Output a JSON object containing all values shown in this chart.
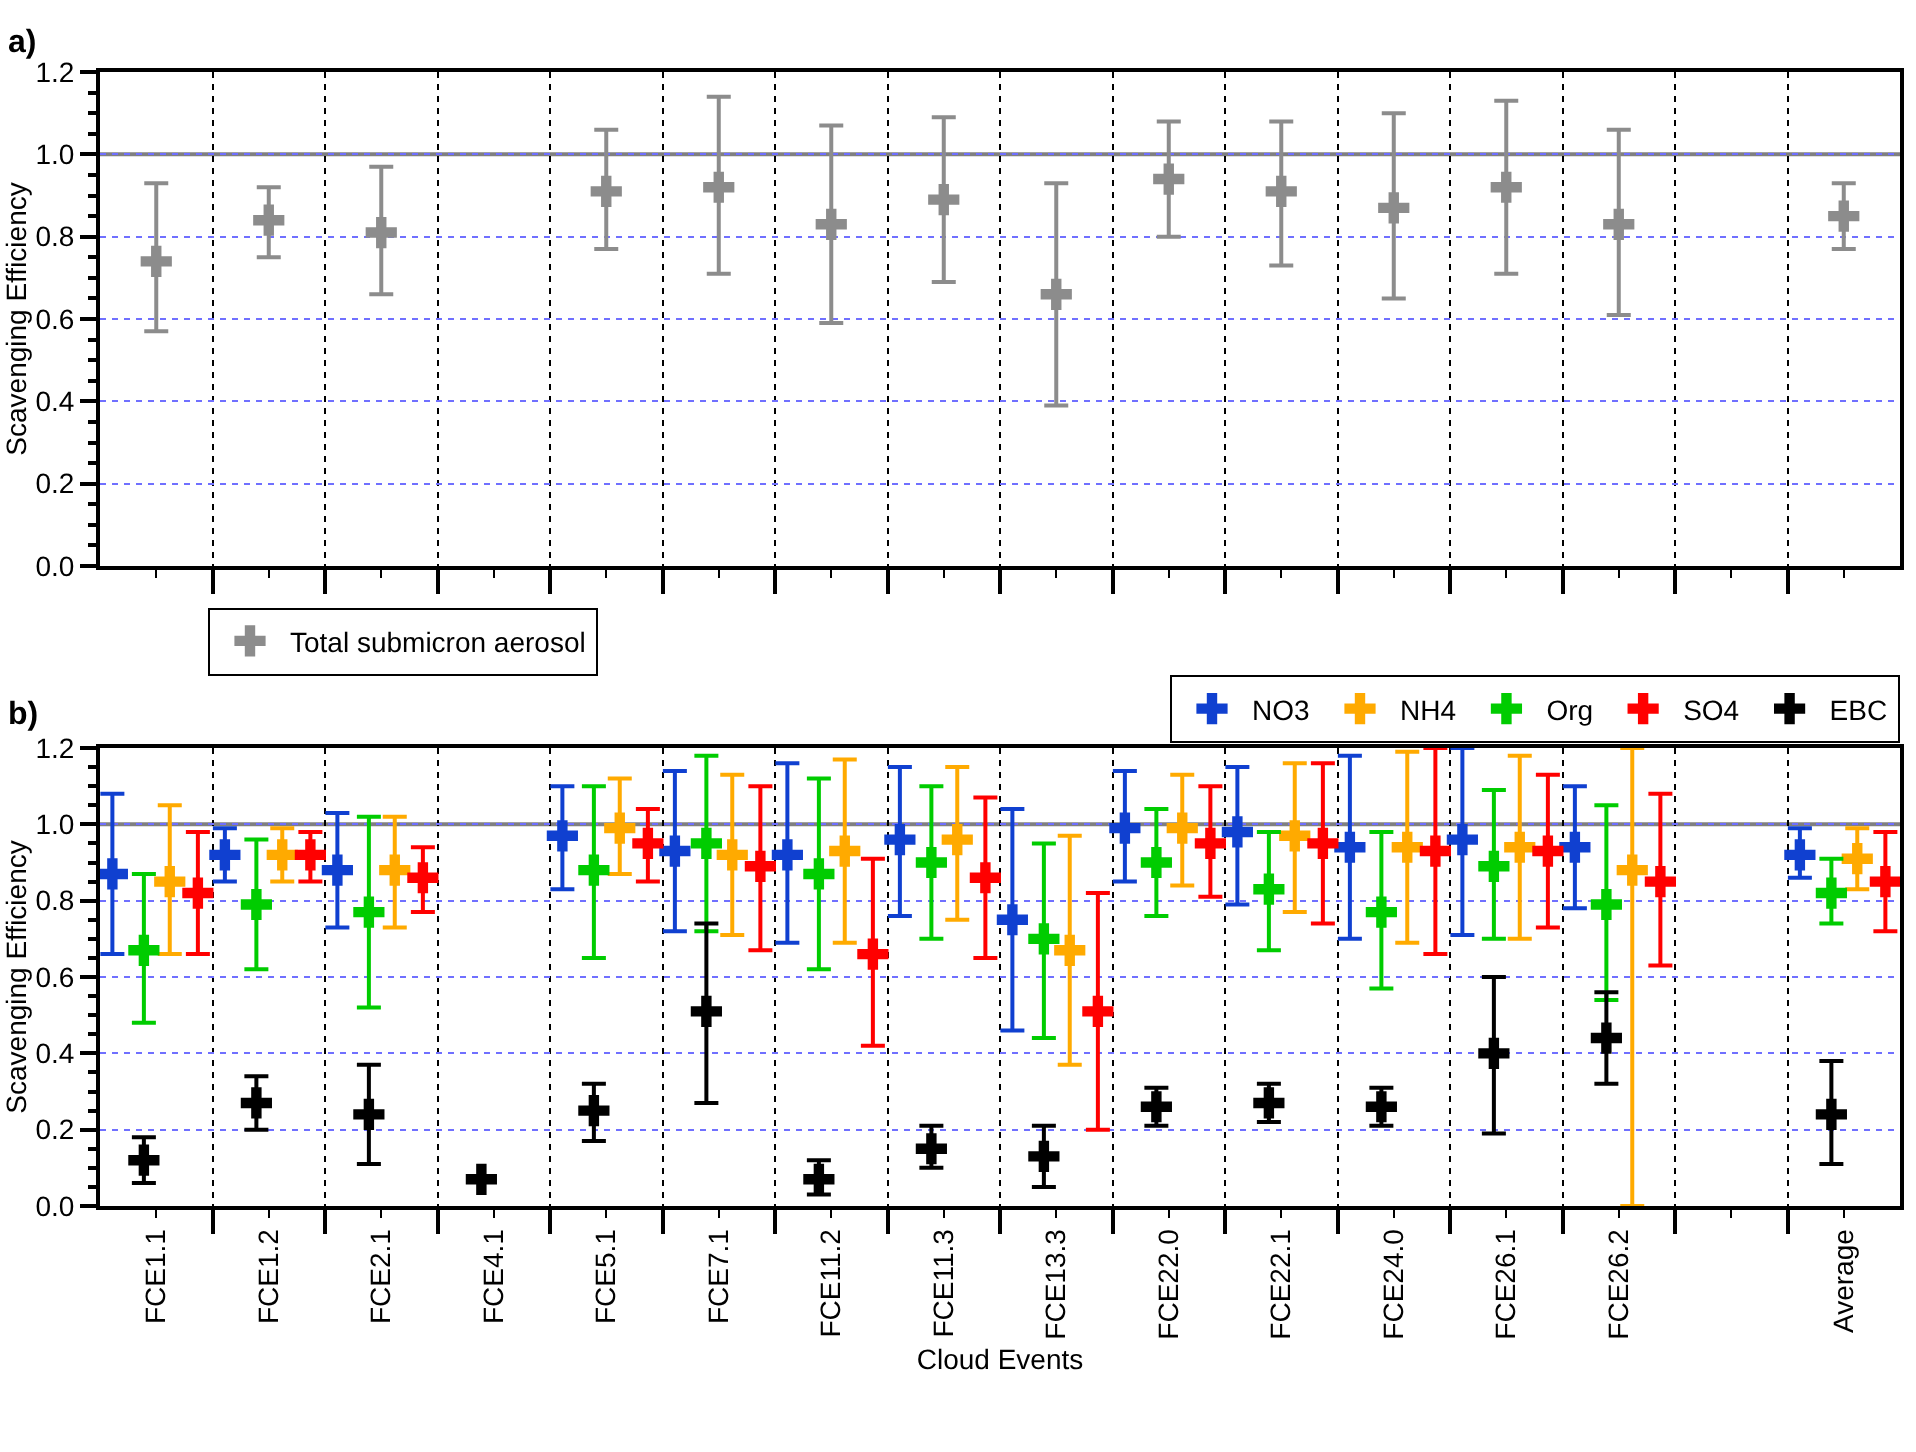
{
  "chart_data": [
    {
      "type": "scatter",
      "ylabel": "Scavenging Efficiency",
      "annotations": [
        "a)"
      ],
      "categories": [
        null,
        null,
        null,
        null,
        null,
        null,
        null,
        null,
        null,
        null,
        null,
        null,
        null,
        null,
        null,
        null
      ],
      "series": [
        {
          "name": "Total submicron aerosol",
          "color": "#8c8c8c",
          "values": [
            0.74,
            0.84,
            0.81,
            null,
            0.91,
            0.92,
            0.83,
            0.89,
            0.66,
            0.94,
            0.91,
            0.87,
            0.92,
            0.83,
            null,
            0.85
          ],
          "errors": [
            [
              0.57,
              0.93
            ],
            [
              0.75,
              0.92
            ],
            [
              0.66,
              0.97
            ],
            null,
            [
              0.77,
              1.06
            ],
            [
              0.71,
              1.14
            ],
            [
              0.59,
              1.07
            ],
            [
              0.69,
              1.09
            ],
            [
              0.39,
              0.93
            ],
            [
              0.8,
              1.08
            ],
            [
              0.73,
              1.08
            ],
            [
              0.65,
              1.1
            ],
            [
              0.71,
              1.13
            ],
            [
              0.61,
              1.06
            ],
            null,
            [
              0.77,
              0.93
            ]
          ]
        }
      ],
      "ylim": [
        0,
        1.2
      ],
      "yticks": [
        {
          "value": 0,
          "label": "0.0"
        },
        {
          "value": 0.2,
          "label": "0.2"
        },
        {
          "value": 0.4,
          "label": "0.4"
        },
        {
          "value": 0.6,
          "label": "0.6"
        },
        {
          "value": 0.8,
          "label": "0.8"
        },
        {
          "value": 1,
          "label": "1.0"
        },
        {
          "value": 1.2,
          "label": "1.2"
        }
      ],
      "ref_lines": [
        {
          "axis": "y",
          "value": 1,
          "color": "#808080"
        }
      ],
      "grid": true,
      "legend": "bottom left",
      "marker": "cross",
      "tick_labels": "y"
    },
    {
      "type": "scatter",
      "xlabel": "Cloud Events",
      "ylabel": "Scavenging Efficiency",
      "annotations": [
        "b)"
      ],
      "categories": [
        "FCE1.1",
        "FCE1.2",
        "FCE2.1",
        "FCE4.1",
        "FCE5.1",
        "FCE7.1",
        "FCE11.2",
        "FCE11.3",
        "FCE13.3",
        "FCE22.0",
        "FCE22.1",
        "FCE24.0",
        "FCE26.1",
        "FCE26.2",
        null,
        "Average"
      ],
      "series": [
        {
          "name": "NO3",
          "color": "#1040d0",
          "values": [
            0.87,
            0.92,
            0.88,
            null,
            0.97,
            0.93,
            0.92,
            0.96,
            0.75,
            0.99,
            0.98,
            0.94,
            0.96,
            0.94,
            null,
            0.92
          ],
          "errors": [
            [
              0.66,
              1.08
            ],
            [
              0.85,
              0.99
            ],
            [
              0.73,
              1.03
            ],
            null,
            [
              0.83,
              1.1
            ],
            [
              0.72,
              1.14
            ],
            [
              0.69,
              1.16
            ],
            [
              0.76,
              1.15
            ],
            [
              0.46,
              1.04
            ],
            [
              0.85,
              1.14
            ],
            [
              0.79,
              1.15
            ],
            [
              0.7,
              1.18
            ],
            [
              0.71,
              1.2
            ],
            [
              0.78,
              1.1
            ],
            null,
            [
              0.86,
              0.99
            ]
          ]
        },
        {
          "name": "NH4",
          "color": "#ffaa00",
          "values": [
            0.85,
            0.92,
            0.88,
            null,
            0.99,
            0.92,
            0.93,
            0.96,
            0.67,
            0.99,
            0.97,
            0.94,
            0.94,
            0.88,
            null,
            0.91
          ],
          "errors": [
            [
              0.66,
              1.05
            ],
            [
              0.85,
              0.99
            ],
            [
              0.73,
              1.02
            ],
            null,
            [
              0.87,
              1.12
            ],
            [
              0.71,
              1.13
            ],
            [
              0.69,
              1.17
            ],
            [
              0.75,
              1.15
            ],
            [
              0.37,
              0.97
            ],
            [
              0.84,
              1.13
            ],
            [
              0.77,
              1.16
            ],
            [
              0.69,
              1.19
            ],
            [
              0.7,
              1.18
            ],
            [
              0,
              1.2
            ],
            null,
            [
              0.83,
              0.99
            ]
          ]
        },
        {
          "name": "Org",
          "color": "#00cc00",
          "values": [
            0.67,
            0.79,
            0.77,
            null,
            0.88,
            0.95,
            0.87,
            0.9,
            0.7,
            0.9,
            0.83,
            0.77,
            0.89,
            0.79,
            null,
            0.82
          ],
          "errors": [
            [
              0.48,
              0.87
            ],
            [
              0.62,
              0.96
            ],
            [
              0.52,
              1.02
            ],
            null,
            [
              0.65,
              1.1
            ],
            [
              0.72,
              1.18
            ],
            [
              0.62,
              1.12
            ],
            [
              0.7,
              1.1
            ],
            [
              0.44,
              0.95
            ],
            [
              0.76,
              1.04
            ],
            [
              0.67,
              0.98
            ],
            [
              0.57,
              0.98
            ],
            [
              0.7,
              1.09
            ],
            [
              0.54,
              1.05
            ],
            null,
            [
              0.74,
              0.91
            ]
          ]
        },
        {
          "name": "SO4",
          "color": "#ff0000",
          "values": [
            0.82,
            0.92,
            0.86,
            null,
            0.95,
            0.89,
            0.66,
            0.86,
            0.51,
            0.95,
            0.95,
            0.93,
            0.93,
            0.85,
            null,
            0.85
          ],
          "errors": [
            [
              0.66,
              0.98
            ],
            [
              0.85,
              0.98
            ],
            [
              0.77,
              0.94
            ],
            null,
            [
              0.85,
              1.04
            ],
            [
              0.67,
              1.1
            ],
            [
              0.42,
              0.91
            ],
            [
              0.65,
              1.07
            ],
            [
              0.2,
              0.82
            ],
            [
              0.81,
              1.1
            ],
            [
              0.74,
              1.16
            ],
            [
              0.66,
              1.2
            ],
            [
              0.73,
              1.13
            ],
            [
              0.63,
              1.08
            ],
            null,
            [
              0.72,
              0.98
            ]
          ]
        },
        {
          "name": "EBC",
          "color": "#000000",
          "values": [
            0.12,
            0.27,
            0.24,
            0.07,
            0.25,
            0.51,
            0.07,
            0.15,
            0.13,
            0.26,
            0.27,
            0.26,
            0.4,
            0.44,
            null,
            0.24
          ],
          "errors": [
            [
              0.06,
              0.18
            ],
            [
              0.2,
              0.34
            ],
            [
              0.11,
              0.37
            ],
            null,
            [
              0.17,
              0.32
            ],
            [
              0.27,
              0.74
            ],
            [
              0.03,
              0.12
            ],
            [
              0.1,
              0.21
            ],
            [
              0.05,
              0.21
            ],
            [
              0.21,
              0.31
            ],
            [
              0.22,
              0.32
            ],
            [
              0.21,
              0.31
            ],
            [
              0.19,
              0.6
            ],
            [
              0.32,
              0.56
            ],
            null,
            [
              0.11,
              0.38
            ]
          ]
        }
      ],
      "ylim": [
        0,
        1.2
      ],
      "yticks": [
        {
          "value": 0,
          "label": "0.0"
        },
        {
          "value": 0.2,
          "label": "0.2"
        },
        {
          "value": 0.4,
          "label": "0.4"
        },
        {
          "value": 0.6,
          "label": "0.6"
        },
        {
          "value": 0.8,
          "label": "0.8"
        },
        {
          "value": 1,
          "label": "1.0"
        },
        {
          "value": 1.2,
          "label": "1.2"
        }
      ],
      "ref_lines": [
        {
          "axis": "y",
          "value": 1,
          "color": "#808080"
        }
      ],
      "grid": true,
      "legend": "top right",
      "marker": "cross"
    }
  ]
}
